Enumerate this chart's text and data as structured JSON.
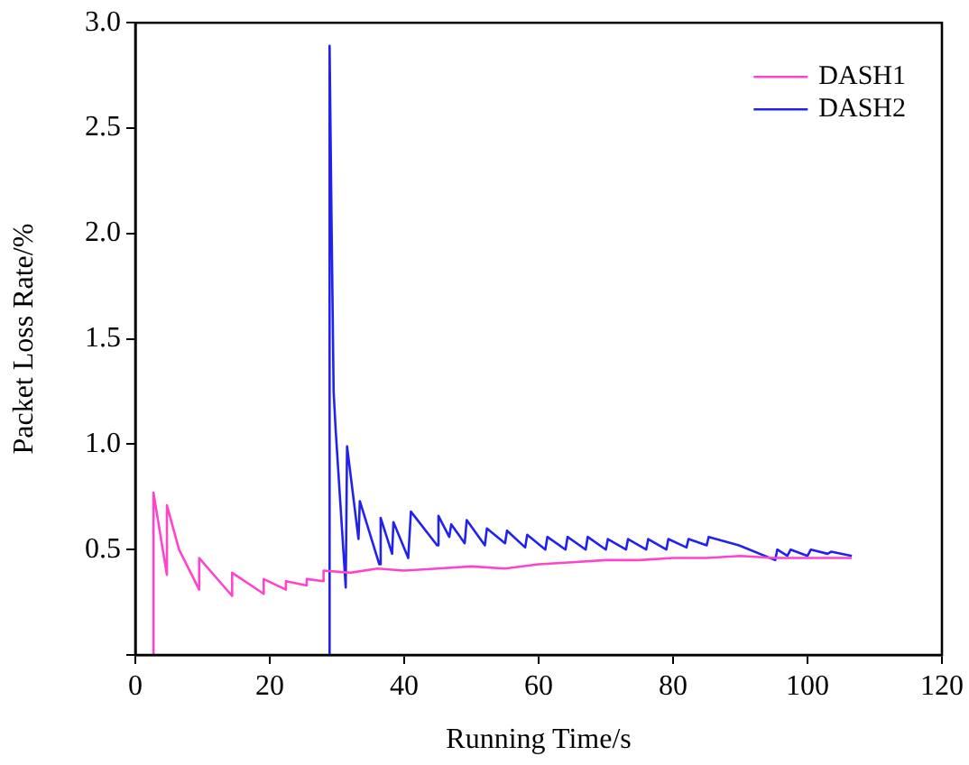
{
  "chart_data": {
    "type": "line",
    "xlabel": "Running Time/s",
    "ylabel": "Packet Loss Rate/%",
    "xlim": [
      0,
      120
    ],
    "xticks": [
      0,
      20,
      40,
      60,
      80,
      100,
      120
    ],
    "ylim": [
      0,
      3
    ],
    "yticks": [
      {
        "value": 0,
        "label": null
      },
      0.5,
      {
        "value": 1,
        "label": "1.0"
      },
      1.5,
      {
        "value": 2,
        "label": "2.0"
      },
      2.5,
      {
        "value": 3,
        "label": "3.0"
      }
    ],
    "grid": false,
    "legend": "top right",
    "marker": "none",
    "line_style": "solid",
    "series": [
      {
        "name": "DASH1",
        "color": "#ff44cc",
        "x": [
          2.7,
          2.7,
          4.7,
          4.7,
          6.5,
          9.5,
          9.5,
          14.4,
          14.4,
          19.1,
          19.1,
          22.4,
          22.4,
          25.5,
          25.5,
          28,
          28,
          32,
          36,
          40,
          45,
          50,
          55,
          60,
          65,
          70,
          75,
          80,
          85,
          90,
          95,
          100,
          106.6
        ],
        "values": [
          0,
          0.77,
          0.38,
          0.71,
          0.5,
          0.31,
          0.46,
          0.28,
          0.39,
          0.29,
          0.36,
          0.31,
          0.35,
          0.33,
          0.36,
          0.35,
          0.4,
          0.39,
          0.41,
          0.4,
          0.41,
          0.42,
          0.41,
          0.43,
          0.44,
          0.45,
          0.45,
          0.46,
          0.46,
          0.47,
          0.46,
          0.46,
          0.46
        ]
      },
      {
        "name": "DASH2",
        "color": "#2222ee",
        "x": [
          28.9,
          28.9,
          29.2,
          29.5,
          29.8,
          31.3,
          31.5,
          33.2,
          33.4,
          36.3,
          36.5,
          38.2,
          38.4,
          40.6,
          41,
          44.9,
          45.1,
          46.7,
          47,
          49,
          49.3,
          52,
          52.3,
          55,
          55.3,
          58,
          58.3,
          61,
          61.3,
          64,
          64.3,
          67,
          67.3,
          70,
          70.3,
          73,
          73.3,
          76,
          76.3,
          79,
          79.3,
          82,
          82.3,
          85,
          85.3,
          89.8,
          95.2,
          95.5,
          97,
          97.5,
          100,
          100.5,
          103,
          103.5,
          106.6
        ],
        "values": [
          0,
          2.89,
          2.03,
          1.25,
          1.07,
          0.32,
          0.99,
          0.55,
          0.73,
          0.43,
          0.65,
          0.48,
          0.63,
          0.46,
          0.68,
          0.52,
          0.66,
          0.56,
          0.62,
          0.53,
          0.64,
          0.52,
          0.6,
          0.53,
          0.59,
          0.51,
          0.57,
          0.5,
          0.56,
          0.5,
          0.56,
          0.5,
          0.56,
          0.5,
          0.55,
          0.5,
          0.55,
          0.5,
          0.55,
          0.5,
          0.55,
          0.51,
          0.55,
          0.52,
          0.56,
          0.52,
          0.45,
          0.5,
          0.47,
          0.5,
          0.47,
          0.5,
          0.48,
          0.49,
          0.47
        ]
      }
    ]
  }
}
